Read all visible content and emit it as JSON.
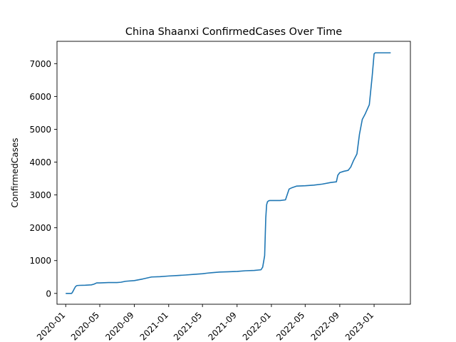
{
  "chart_data": {
    "type": "line",
    "title": "China Shaanxi ConfirmedCases Over Time",
    "xlabel": "",
    "ylabel": "ConfirmedCases",
    "xlim": [
      "2019-12-01",
      "2023-05-10"
    ],
    "ylim": [
      -330,
      7680
    ],
    "grid": false,
    "legend": "none",
    "line_color": "#1f77b4",
    "x_ticks": [
      "2020-01",
      "2020-05",
      "2020-09",
      "2021-01",
      "2021-05",
      "2021-09",
      "2022-01",
      "2022-05",
      "2022-09",
      "2023-01"
    ],
    "y_ticks": [
      "0",
      "1000",
      "2000",
      "3000",
      "4000",
      "5000",
      "6000",
      "7000"
    ],
    "series": [
      {
        "x": [
          "2020-01-01",
          "2020-01-22",
          "2020-01-26",
          "2020-02-01",
          "2020-02-05",
          "2020-02-10",
          "2020-02-20",
          "2020-03-10",
          "2020-04-01",
          "2020-04-10",
          "2020-04-20",
          "2020-05-01",
          "2020-06-01",
          "2020-07-01",
          "2020-07-15",
          "2020-08-01",
          "2020-09-01",
          "2020-10-01",
          "2020-11-01",
          "2020-12-01",
          "2021-01-01",
          "2021-02-01",
          "2021-03-01",
          "2021-04-01",
          "2021-05-01",
          "2021-05-20",
          "2021-06-01",
          "2021-07-01",
          "2021-08-01",
          "2021-09-01",
          "2021-10-01",
          "2021-11-01",
          "2021-11-25",
          "2021-12-01",
          "2021-12-08",
          "2021-12-12",
          "2021-12-15",
          "2021-12-18",
          "2021-12-22",
          "2021-12-26",
          "2022-01-01",
          "2022-01-10",
          "2022-02-01",
          "2022-02-20",
          "2022-03-01",
          "2022-03-05",
          "2022-03-15",
          "2022-04-01",
          "2022-05-01",
          "2022-06-01",
          "2022-07-01",
          "2022-08-01",
          "2022-08-20",
          "2022-08-25",
          "2022-09-01",
          "2022-09-15",
          "2022-10-01",
          "2022-10-10",
          "2022-10-20",
          "2022-11-01",
          "2022-11-10",
          "2022-11-20",
          "2022-12-01",
          "2022-12-15",
          "2022-12-25",
          "2023-01-01",
          "2023-01-05",
          "2023-01-15",
          "2023-03-01"
        ],
        "y": [
          0,
          0,
          50,
          150,
          210,
          240,
          245,
          250,
          260,
          280,
          320,
          320,
          330,
          330,
          340,
          370,
          390,
          440,
          500,
          510,
          530,
          545,
          560,
          580,
          600,
          620,
          630,
          650,
          660,
          670,
          690,
          700,
          720,
          800,
          1150,
          2300,
          2700,
          2790,
          2820,
          2830,
          2830,
          2830,
          2830,
          2850,
          3080,
          3180,
          3220,
          3270,
          3280,
          3300,
          3330,
          3380,
          3400,
          3600,
          3680,
          3720,
          3750,
          3850,
          4050,
          4250,
          4850,
          5300,
          5480,
          5750,
          6600,
          7300,
          7330,
          7330,
          7330
        ]
      }
    ]
  }
}
